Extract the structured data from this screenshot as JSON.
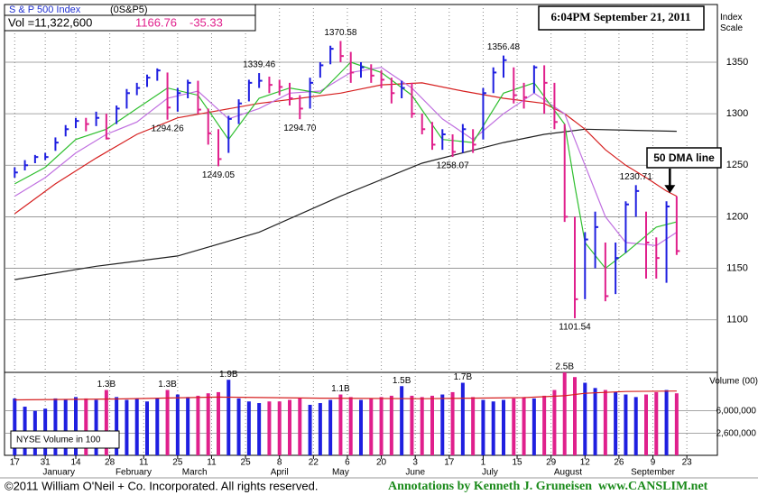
{
  "header": {
    "title": "S & P 500 Index",
    "symbol": "(0S&P5)",
    "volume": "Vol =11,322,600",
    "last": 1166.76,
    "change": -35.33,
    "timestamp": "6:04PM September 21, 2011"
  },
  "chart_data": [
    {
      "type": "ohlc",
      "y_label": "Index Scale",
      "xlim": [
        -3,
        207
      ],
      "ylim": [
        1049,
        1406
      ],
      "yticks": [
        1100,
        1150,
        1200,
        1250,
        1300,
        1350
      ],
      "grid": true,
      "up_color": "#1f1fe0",
      "down_color": "#e0208c",
      "x": [
        0,
        3,
        6,
        9,
        12,
        15,
        18,
        21,
        24,
        27,
        30,
        33,
        36,
        39,
        42,
        45,
        48,
        51,
        54,
        57,
        60,
        63,
        66,
        69,
        72,
        75,
        78,
        81,
        84,
        87,
        90,
        93,
        96,
        99,
        102,
        105,
        108,
        111,
        114,
        117,
        120,
        123,
        126,
        129,
        132,
        135,
        138,
        141,
        144,
        147,
        150,
        153,
        156,
        159,
        162,
        165,
        168,
        171,
        174,
        177,
        180,
        183,
        186,
        189,
        192,
        195
      ],
      "high": [
        1248,
        1255,
        1260,
        1262,
        1277,
        1289,
        1296,
        1296,
        1302,
        1300,
        1308,
        1324,
        1330,
        1338,
        1344,
        1340,
        1325,
        1333,
        1332,
        1305,
        1285,
        1298,
        1314,
        1333,
        1339.46,
        1336,
        1333,
        1330,
        1318,
        1335,
        1350,
        1366,
        1370.58,
        1360,
        1350,
        1348,
        1342,
        1335,
        1332,
        1330,
        1300,
        1292,
        1285,
        1280,
        1290,
        1285,
        1325,
        1345,
        1356.48,
        1345,
        1330,
        1347,
        1347,
        1330,
        1290,
        1200,
        1185,
        1205,
        1175,
        1175,
        1215,
        1230.71,
        1205,
        1180,
        1215,
        1220
      ],
      "low": [
        1238,
        1245,
        1252,
        1255,
        1264,
        1278,
        1286,
        1283,
        1288,
        1275,
        1290,
        1305,
        1318,
        1326,
        1332,
        1294.26,
        1302,
        1315,
        1300,
        1270,
        1249.05,
        1262,
        1290,
        1312,
        1325,
        1320,
        1318,
        1308,
        1294.7,
        1305,
        1335,
        1348,
        1350,
        1330,
        1335,
        1330,
        1325,
        1310,
        1315,
        1296,
        1280,
        1265,
        1265,
        1258.07,
        1262,
        1262,
        1275,
        1320,
        1335,
        1310,
        1305,
        1320,
        1300,
        1285,
        1195,
        1101.54,
        1120,
        1150,
        1118,
        1125,
        1165,
        1200,
        1140,
        1140,
        1136,
        1163
      ],
      "close": [
        1243,
        1250,
        1258,
        1258,
        1272,
        1285,
        1293,
        1290,
        1296,
        1276,
        1305,
        1320,
        1325,
        1335,
        1342,
        1306,
        1320,
        1330,
        1304,
        1281,
        1256,
        1295,
        1310,
        1330,
        1332,
        1328,
        1326,
        1315,
        1305,
        1330,
        1347,
        1363,
        1356,
        1340,
        1345,
        1337,
        1333,
        1320,
        1325,
        1300,
        1285,
        1270,
        1280,
        1263,
        1285,
        1270,
        1320,
        1340,
        1352,
        1318,
        1316,
        1345,
        1330,
        1292,
        1200,
        1120,
        1178,
        1190,
        1123,
        1160,
        1212,
        1225,
        1175,
        1160,
        1210,
        1166.76
      ],
      "lines": [
        {
          "color": "#202020",
          "x": [
            0,
            24,
            48,
            72,
            96,
            120,
            144,
            156,
            168,
            180,
            195
          ],
          "values": [
            1139,
            1152,
            1162,
            1185,
            1220,
            1252,
            1272,
            1280,
            1285,
            1284,
            1283
          ]
        },
        {
          "color": "#d62020",
          "x": [
            0,
            12,
            24,
            36,
            48,
            60,
            72,
            84,
            96,
            108,
            120,
            132,
            144,
            156,
            162,
            168,
            174,
            180,
            186,
            192,
            195
          ],
          "values": [
            1203,
            1232,
            1257,
            1280,
            1296,
            1303,
            1310,
            1315,
            1320,
            1328,
            1330,
            1322,
            1315,
            1310,
            1300,
            1285,
            1265,
            1250,
            1238,
            1225,
            1220
          ]
        },
        {
          "color": "#c070e0",
          "x": [
            0,
            9,
            18,
            27,
            36,
            45,
            54,
            63,
            72,
            81,
            90,
            99,
            108,
            117,
            126,
            135,
            144,
            153,
            162,
            168,
            174,
            180,
            189,
            195
          ],
          "values": [
            1220,
            1238,
            1262,
            1280,
            1292,
            1315,
            1322,
            1295,
            1305,
            1320,
            1322,
            1340,
            1345,
            1325,
            1295,
            1275,
            1300,
            1320,
            1300,
            1250,
            1200,
            1175,
            1172,
            1185
          ]
        },
        {
          "color": "#2fbf2f",
          "x": [
            0,
            9,
            18,
            27,
            36,
            45,
            54,
            63,
            72,
            81,
            90,
            99,
            108,
            117,
            126,
            135,
            144,
            153,
            162,
            165,
            168,
            174,
            180,
            189,
            195
          ],
          "values": [
            1232,
            1248,
            1275,
            1285,
            1305,
            1325,
            1318,
            1275,
            1315,
            1325,
            1320,
            1350,
            1340,
            1318,
            1275,
            1272,
            1320,
            1330,
            1290,
            1230,
            1175,
            1150,
            1165,
            1190,
            1195
          ]
        }
      ],
      "annotations": [
        {
          "label": "1294.26",
          "x": 45,
          "value": 1294.26
        },
        {
          "label": "1249.05",
          "x": 60,
          "value": 1249.05
        },
        {
          "label": "1339.46",
          "x": 72,
          "value": 1339.46
        },
        {
          "label": "1294.70",
          "x": 84,
          "value": 1294.7
        },
        {
          "label": "1370.58",
          "x": 96,
          "value": 1370.58
        },
        {
          "label": "1258.07",
          "x": 129,
          "value": 1258.07
        },
        {
          "label": "1356.48",
          "x": 144,
          "value": 1356.48
        },
        {
          "label": "1101.54",
          "x": 165,
          "value": 1101.54
        },
        {
          "label": "1230.71",
          "x": 183,
          "value": 1230.71
        }
      ],
      "callout": {
        "label": "50 DMA line",
        "x": 193,
        "value": 1222
      }
    },
    {
      "type": "bar",
      "y_label": "Volume (00)",
      "legend_text": "NYSE Volume in 100",
      "yscale": "log",
      "xlim": [
        -3,
        207
      ],
      "ylim": [
        1150000,
        25000000
      ],
      "yticks": [
        {
          "value": 2600000,
          "label": "2,600,000"
        },
        {
          "value": 6000000,
          "label": "6,000,000"
        }
      ],
      "x": [
        0,
        3,
        6,
        9,
        12,
        15,
        18,
        21,
        24,
        27,
        30,
        33,
        36,
        39,
        42,
        45,
        48,
        51,
        54,
        57,
        60,
        63,
        66,
        69,
        72,
        75,
        78,
        81,
        84,
        87,
        90,
        93,
        96,
        99,
        102,
        105,
        108,
        111,
        114,
        117,
        120,
        123,
        126,
        129,
        132,
        135,
        138,
        141,
        144,
        147,
        150,
        153,
        156,
        159,
        162,
        165,
        168,
        171,
        174,
        177,
        180,
        183,
        186,
        189,
        192,
        195
      ],
      "values": [
        9500000,
        7000000,
        6000000,
        6500000,
        9500000,
        9000000,
        10000000,
        9500000,
        9000000,
        13000000,
        10000000,
        9000000,
        9500000,
        8500000,
        9500000,
        13000000,
        11000000,
        10000000,
        10500000,
        11500000,
        12000000,
        19000000,
        9500000,
        8500000,
        8000000,
        8500000,
        8500000,
        9000000,
        9500000,
        7500000,
        8000000,
        9000000,
        11000000,
        10000000,
        9000000,
        9500000,
        10000000,
        10500000,
        15000000,
        10500000,
        10000000,
        10500000,
        11000000,
        12000000,
        17000000,
        10000000,
        9000000,
        8500000,
        9000000,
        9500000,
        10000000,
        9500000,
        10500000,
        13000000,
        25000000,
        21000000,
        17000000,
        14000000,
        13000000,
        12000000,
        11000000,
        10000000,
        11000000,
        12000000,
        13000000,
        11500000
      ],
      "avg": {
        "color": "#d62020",
        "x": [
          0,
          30,
          60,
          90,
          120,
          150,
          162,
          168,
          180,
          195
        ],
        "values": [
          9000000,
          9300000,
          10000000,
          9600000,
          9400000,
          9800000,
          10500000,
          11500000,
          12300000,
          12500000
        ]
      },
      "annotations": [
        {
          "label": "1.3B",
          "x": 27,
          "value": 13000000
        },
        {
          "label": "1.3B",
          "x": 45,
          "value": 13000000
        },
        {
          "label": "1.9B",
          "x": 63,
          "value": 19000000
        },
        {
          "label": "1.1B",
          "x": 96,
          "value": 11000000
        },
        {
          "label": "1.5B",
          "x": 114,
          "value": 15000000
        },
        {
          "label": "1.7B",
          "x": 132,
          "value": 17000000
        },
        {
          "label": "2.5B",
          "x": 162,
          "value": 25000000
        }
      ],
      "xticks": [
        {
          "value": 0,
          "label": "17"
        },
        {
          "value": 9,
          "label": "31"
        },
        {
          "value": 18,
          "label": "14"
        },
        {
          "value": 28,
          "label": "28"
        },
        {
          "value": 38,
          "label": "11"
        },
        {
          "value": 48,
          "label": "25"
        },
        {
          "value": 58,
          "label": "11"
        },
        {
          "value": 68,
          "label": "25"
        },
        {
          "value": 78,
          "label": "8"
        },
        {
          "value": 88,
          "label": "22"
        },
        {
          "value": 98,
          "label": "6"
        },
        {
          "value": 108,
          "label": "20"
        },
        {
          "value": 118,
          "label": "3"
        },
        {
          "value": 128,
          "label": "17"
        },
        {
          "value": 138,
          "label": "1"
        },
        {
          "value": 148,
          "label": "15"
        },
        {
          "value": 158,
          "label": "29"
        },
        {
          "value": 168,
          "label": "12"
        },
        {
          "value": 178,
          "label": "26"
        },
        {
          "value": 188,
          "label": "9"
        },
        {
          "value": 198,
          "label": "23"
        }
      ],
      "months": [
        {
          "value": 13,
          "label": "January"
        },
        {
          "value": 35,
          "label": "February"
        },
        {
          "value": 53,
          "label": "March"
        },
        {
          "value": 78,
          "label": "April"
        },
        {
          "value": 96,
          "label": "May"
        },
        {
          "value": 118,
          "label": "June"
        },
        {
          "value": 140,
          "label": "July"
        },
        {
          "value": 163,
          "label": "August"
        },
        {
          "value": 188,
          "label": "September"
        }
      ]
    }
  ],
  "footer": {
    "copyright": "©2011 William O'Neil + Co. Incorporated. All rights reserved.",
    "credit": "Annotations by Kenneth J. Gruneisen  www.CANSLIM.net"
  }
}
